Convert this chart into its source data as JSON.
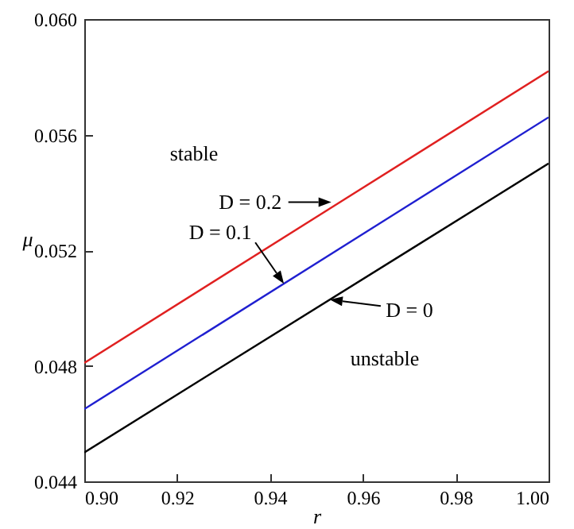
{
  "chart_data": {
    "type": "line",
    "xlabel": "r",
    "ylabel": "μ",
    "x": [
      0.9,
      1.0
    ],
    "series": [
      {
        "color": "#e02020",
        "values": [
          0.0481,
          0.0582
        ]
      },
      {
        "color": "#1f1fd0",
        "values": [
          0.0465,
          0.0566
        ]
      },
      {
        "color": "#000000",
        "values": [
          0.045,
          0.055
        ]
      }
    ],
    "xlim": [
      0.9,
      1.0
    ],
    "ylim": [
      0.044,
      0.06
    ],
    "xticks": [
      {
        "value": 0.9,
        "label": "0.90"
      },
      {
        "value": 0.92,
        "label": "0.92"
      },
      {
        "value": 0.94,
        "label": "0.94"
      },
      {
        "value": 0.96,
        "label": "0.96"
      },
      {
        "value": 0.98,
        "label": "0.98"
      },
      {
        "value": 1.0,
        "label": "1.00"
      }
    ],
    "yticks": [
      {
        "value": 0.044,
        "label": "0.044"
      },
      0.048,
      0.052,
      0.056,
      {
        "value": 0.06,
        "label": "0.060"
      }
    ],
    "grid": false,
    "marker": "none",
    "line_style": "solid",
    "annotations": [
      "stable",
      "unstable",
      {
        "text": "D = 0.2",
        "x": 0.9532,
        "y": 0.05366
      },
      {
        "text": "D = 0.1",
        "x": 0.943,
        "y": 0.05084
      },
      {
        "text": "D = 0",
        "x": 0.9529,
        "y": 0.05029
      }
    ]
  }
}
